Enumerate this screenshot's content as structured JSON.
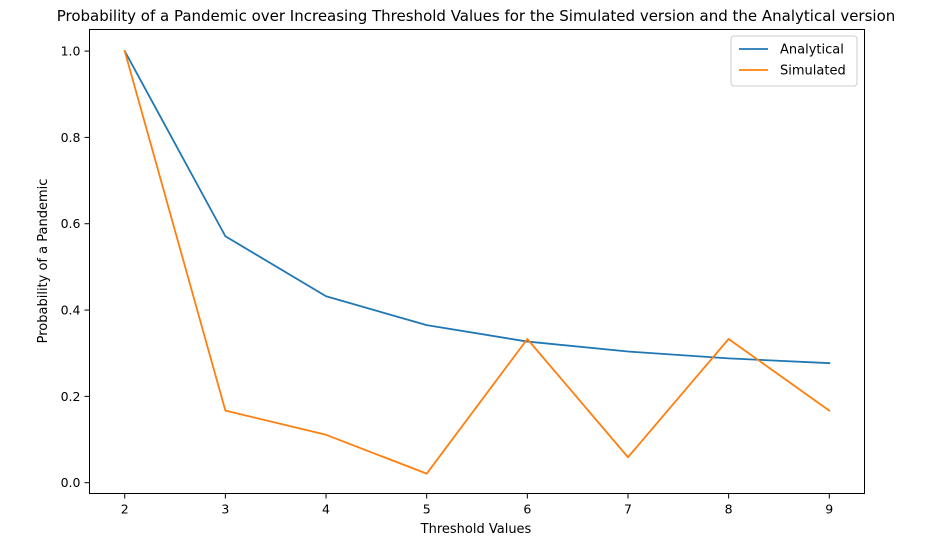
{
  "chart_data": {
    "type": "line",
    "title": "Probability of a Pandemic over Increasing Threshold Values for the Simulated version and the Analytical version",
    "xlabel": "Threshold Values",
    "ylabel": "Probability of a Pandemic",
    "x": [
      2,
      3,
      4,
      5,
      6,
      7,
      8,
      9
    ],
    "xticks": [
      "2",
      "3",
      "4",
      "5",
      "6",
      "7",
      "8",
      "9"
    ],
    "yticks": [
      "0.0",
      "0.2",
      "0.4",
      "0.6",
      "0.8",
      "1.0"
    ],
    "ytick_values": [
      0.0,
      0.2,
      0.4,
      0.6,
      0.8,
      1.0
    ],
    "xlim": [
      1.65,
      9.35
    ],
    "ylim": [
      -0.025,
      1.05
    ],
    "grid": false,
    "legend_position": "top-right",
    "series": [
      {
        "name": "Analytical",
        "color": "#1f77b4",
        "values": [
          1.0,
          0.571,
          0.432,
          0.365,
          0.327,
          0.304,
          0.288,
          0.277
        ]
      },
      {
        "name": "Simulated",
        "color": "#ff7f0e",
        "values": [
          1.0,
          0.167,
          0.111,
          0.021,
          0.333,
          0.059,
          0.333,
          0.167
        ]
      }
    ]
  }
}
